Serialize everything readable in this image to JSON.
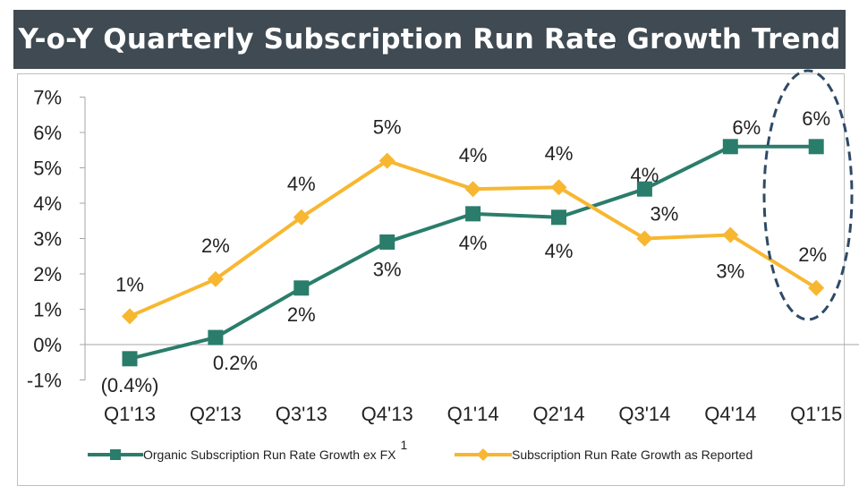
{
  "title": "Y-o-Y Quarterly Subscription Run Rate Growth Trend",
  "colors": {
    "title_bg": "#3f4a52",
    "organic": "#2a7d6b",
    "reported": "#f7b731",
    "ellipse": "#2e4a66"
  },
  "chart_data": {
    "type": "line",
    "title": "Y-o-Y Quarterly Subscription Run Rate Growth Trend",
    "categories": [
      "Q1'13",
      "Q2'13",
      "Q3'13",
      "Q4'13",
      "Q1'14",
      "Q2'14",
      "Q3'14",
      "Q4'14",
      "Q1'15"
    ],
    "yticks": [
      "7%",
      "6%",
      "5%",
      "4%",
      "3%",
      "2%",
      "1%",
      "0%",
      "-1%"
    ],
    "ylim": [
      -1,
      7
    ],
    "grid": false,
    "legend_position": "bottom",
    "series": [
      {
        "name": "Organic Subscription Run Rate Growth ex FX",
        "name_superscript": "1",
        "marker": "square",
        "color": "#2a7d6b",
        "values": [
          -0.4,
          0.2,
          1.6,
          2.9,
          3.7,
          3.6,
          4.4,
          5.6,
          5.6
        ],
        "labels": [
          "(0.4%)",
          "0.2%",
          "2%",
          "3%",
          "4%",
          "4%",
          "4%",
          "6%",
          "6%"
        ]
      },
      {
        "name": "Subscription Run Rate Growth as Reported",
        "marker": "diamond",
        "color": "#f7b731",
        "values": [
          0.8,
          1.85,
          3.6,
          5.2,
          4.4,
          4.45,
          3.0,
          3.1,
          1.6
        ],
        "labels": [
          "1%",
          "2%",
          "4%",
          "5%",
          "4%",
          "4%",
          "3%",
          "3%",
          "2%"
        ]
      }
    ],
    "annotation": "dashed ellipse highlighting Q1'15"
  }
}
